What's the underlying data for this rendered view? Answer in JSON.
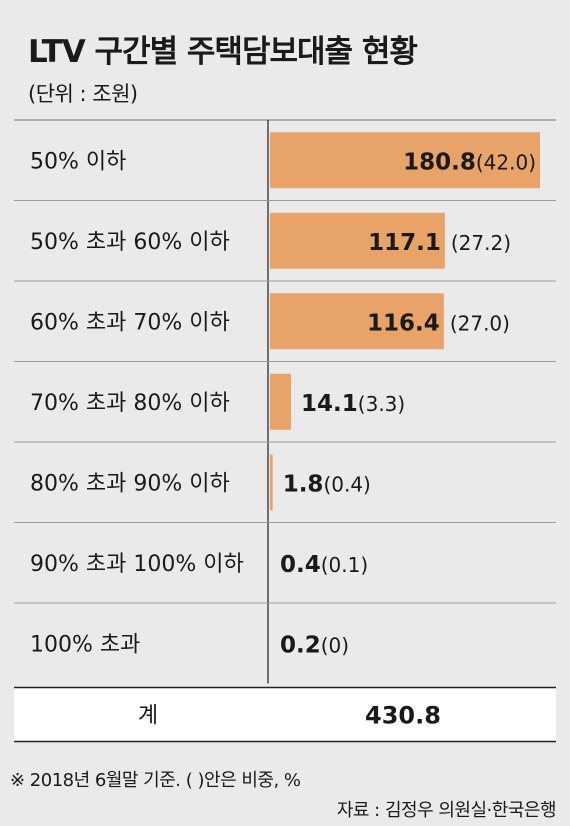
{
  "title": "LTV 구간별 주택담보대출 현황",
  "unit_label": "(단위 : 조원)",
  "chart_data": {
    "type": "bar",
    "orientation": "horizontal",
    "title": "LTV 구간별 주택담보대출 현황",
    "categories": [
      "50% 이하",
      "50% 초과 60% 이하",
      "60% 초과 70% 이하",
      "70% 초과 80% 이하",
      "80% 초과 90% 이하",
      "90% 초과 100% 이하",
      "100% 초과"
    ],
    "values": [
      180.8,
      117.1,
      116.4,
      14.1,
      1.8,
      0.4,
      0.2
    ],
    "value_labels": [
      "180.8",
      "117.1",
      "116.4",
      "14.1",
      "1.8",
      "0.4",
      "0.2"
    ],
    "shares": [
      "(42.0)",
      "(27.2)",
      "(27.0)",
      "(3.3)",
      "(0.4)",
      "(0.1)",
      "(0)"
    ],
    "xlim": [
      0,
      180.8
    ],
    "bar_color": "#e8a468",
    "total_label": "계",
    "total_value": "430.8"
  },
  "colors": {
    "background": "#eaeaea",
    "bar": "#e8a468",
    "line": "#9a9a9a",
    "text": "#1a1a1a",
    "total_row": "#ffffff"
  },
  "footer": {
    "note": "※ 2018년 6월말 기준. (  )안은 비중, %",
    "source": "자료 : 김정우 의원실·한국은행"
  }
}
